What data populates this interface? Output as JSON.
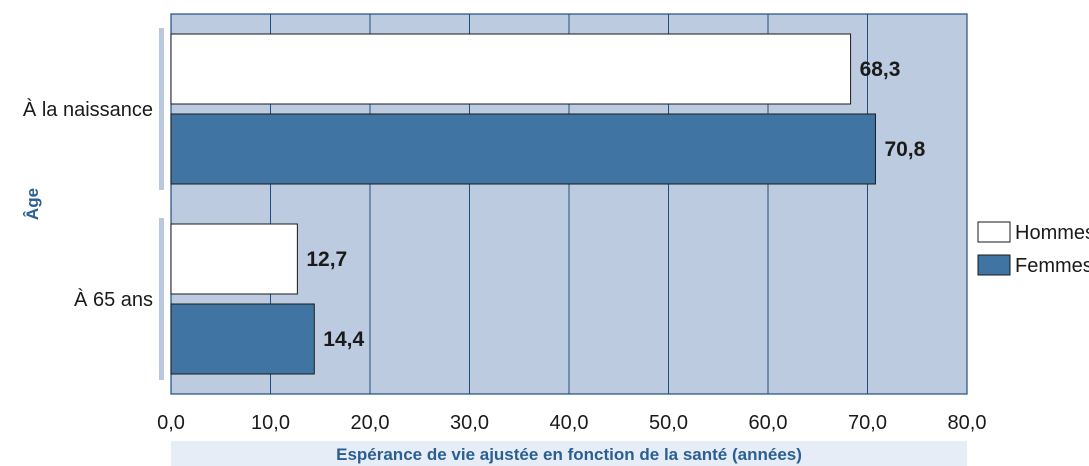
{
  "chart_data": {
    "type": "bar",
    "orientation": "horizontal",
    "categories": [
      "À la naissance",
      "À 65 ans"
    ],
    "series": [
      {
        "name": "Hommes",
        "values": [
          68.3,
          12.7
        ],
        "labels": [
          "68,3",
          "12,7"
        ],
        "color": "#ffffff"
      },
      {
        "name": "Femmes",
        "values": [
          70.8,
          14.4
        ],
        "labels": [
          "70,8",
          "14,4"
        ],
        "color": "#3f74a3"
      }
    ],
    "xlabel": "Espérance de vie ajustée en fonction de la santé (années)",
    "ylabel": "Âge",
    "xlim": [
      0,
      80
    ],
    "xticks": [
      0,
      10,
      20,
      30,
      40,
      50,
      60,
      70,
      80
    ],
    "xtick_labels": [
      "0,0",
      "10,0",
      "20,0",
      "30,0",
      "40,0",
      "50,0",
      "60,0",
      "70,0",
      "80,0"
    ],
    "grid": "vertical",
    "legend_position": "right",
    "plot_background": "#bccbe0",
    "grid_color": "#1f4f7e",
    "axis_title_color": "#2b5f91"
  }
}
